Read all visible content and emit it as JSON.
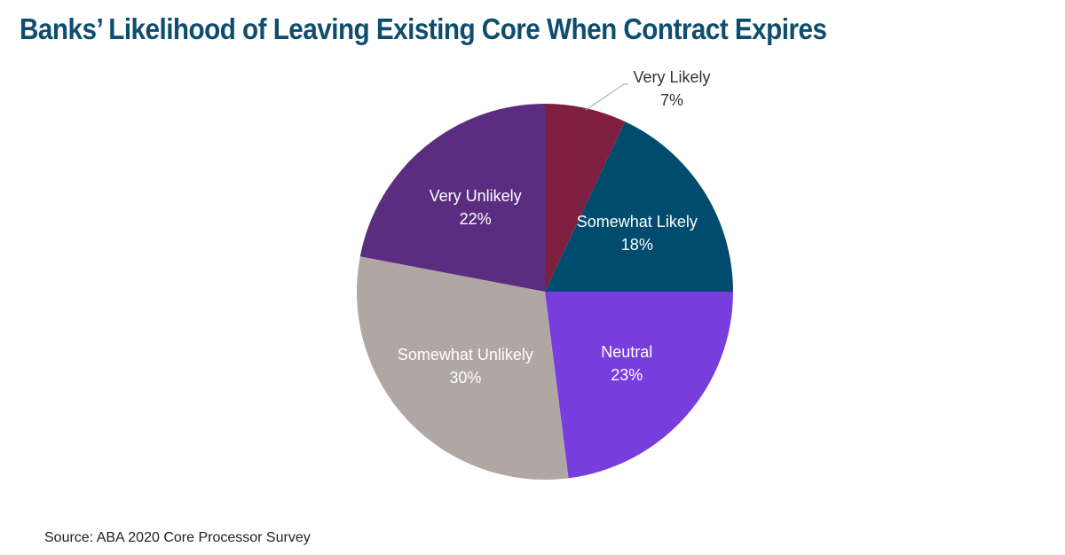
{
  "title": "Banks’ Likelihood of Leaving Existing Core When Contract Expires",
  "source": "Source: ABA 2020 Core Processor Survey",
  "colors": {
    "title": "#0f4d6e",
    "label_light": "#ffffff",
    "label_dark": "#333333",
    "leader": "#a6a6a6"
  },
  "chart_data": {
    "type": "pie",
    "title": "Banks’ Likelihood of Leaving Existing Core When Contract Expires",
    "start": "12 o'clock",
    "direction": "clockwise",
    "slices": [
      {
        "label": "Very Likely",
        "value": 7,
        "value_label": "7%",
        "color": "#7f1f3f",
        "label_placement": "outside-leader"
      },
      {
        "label": "Somewhat Likely",
        "value": 18,
        "value_label": "18%",
        "color": "#004b6e",
        "label_placement": "inside"
      },
      {
        "label": "Neutral",
        "value": 23,
        "value_label": "23%",
        "color": "#773ddd",
        "label_placement": "inside"
      },
      {
        "label": "Somewhat Unlikely",
        "value": 30,
        "value_label": "30%",
        "color": "#b0a7a4",
        "label_placement": "inside"
      },
      {
        "label": "Very Unlikely",
        "value": 22,
        "value_label": "22%",
        "color": "#5b2d80",
        "label_placement": "inside"
      }
    ]
  }
}
